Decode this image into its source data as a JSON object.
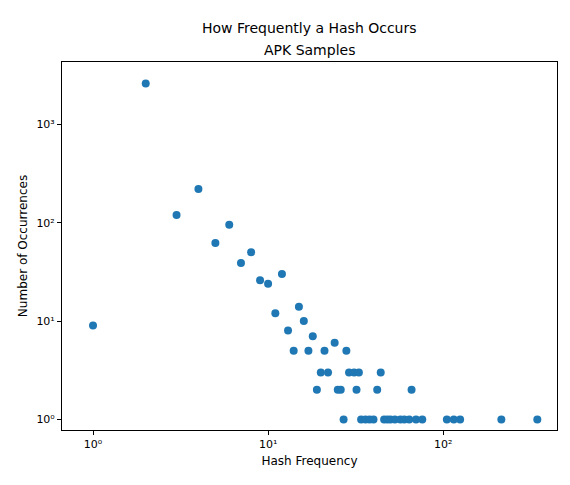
{
  "chart_data": {
    "type": "scatter",
    "title": "How Frequently a Hash Occurs",
    "subtitle": "APK Samples",
    "x_label": "Hash Frequency",
    "y_label": "Number of Occurrences",
    "x": [
      1,
      2,
      3,
      4,
      5,
      6,
      7,
      8,
      9,
      10,
      11,
      12,
      13,
      14,
      15,
      16,
      17,
      18,
      19,
      20,
      21,
      22,
      24,
      25,
      26,
      27,
      28,
      29,
      31,
      32,
      33,
      34,
      36,
      38,
      40,
      42,
      44,
      46,
      48,
      50,
      53,
      57,
      60,
      64,
      66,
      70,
      76,
      105,
      115,
      125,
      215,
      345
    ],
    "values": [
      9,
      2600,
      120,
      220,
      62,
      95,
      39,
      50,
      26,
      24,
      12,
      30,
      8,
      5,
      14,
      10,
      5,
      7,
      2,
      3,
      5,
      3,
      6,
      2,
      2,
      1,
      5,
      3,
      3,
      2,
      3,
      1,
      1,
      1,
      1,
      2,
      3,
      1,
      1,
      1,
      1,
      1,
      1,
      1,
      2,
      1,
      1,
      1,
      1,
      1,
      1,
      1
    ],
    "color": "#1f77b4",
    "marker": "circle",
    "log": true,
    "grid": false,
    "xlim": [
      0.665,
      447
    ],
    "ylim": [
      0.78,
      4300
    ],
    "xticks": [
      {
        "value": 1,
        "label": "10⁰"
      },
      {
        "value": 10,
        "label": "10¹"
      },
      {
        "value": 100,
        "label": "10²"
      }
    ],
    "yticks": [
      {
        "value": 1,
        "label": "10⁰"
      },
      {
        "value": 10,
        "label": "10¹"
      },
      {
        "value": 100,
        "label": "10²"
      },
      {
        "value": 1000,
        "label": "10³"
      }
    ]
  }
}
